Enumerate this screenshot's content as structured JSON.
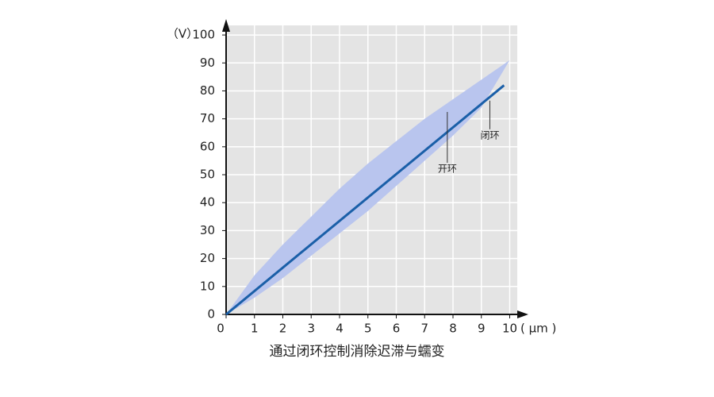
{
  "chart_data": {
    "type": "line",
    "title": "通过闭环控制消除迟滞与蠕变",
    "y_label": "（V）",
    "x_label": "( μm )",
    "xlim": [
      0,
      10.35
    ],
    "ylim": [
      0,
      104
    ],
    "xticks": [
      0,
      1,
      2,
      3,
      4,
      5,
      6,
      7,
      8,
      9,
      10
    ],
    "yticks": [
      0,
      10,
      20,
      30,
      40,
      50,
      60,
      70,
      80,
      90,
      100
    ],
    "grid": true,
    "series": [
      {
        "name": "开环",
        "kind": "band",
        "color": "#b9c5ee",
        "x": [
          0,
          1,
          2,
          3,
          4,
          5,
          6,
          7,
          8,
          9,
          10
        ],
        "values": [
          0,
          14,
          25,
          35,
          45,
          54,
          62,
          70,
          77,
          84,
          91
        ],
        "lower": [
          0,
          6,
          13,
          21,
          29,
          37,
          46,
          55,
          64,
          74,
          91
        ],
        "label_at": [
          7.8,
          52
        ]
      },
      {
        "name": "闭环",
        "kind": "line",
        "color": "#1a5fa8",
        "x": [
          0,
          9.8
        ],
        "values": [
          0,
          82
        ],
        "label_at": [
          9.3,
          64
        ]
      }
    ]
  }
}
